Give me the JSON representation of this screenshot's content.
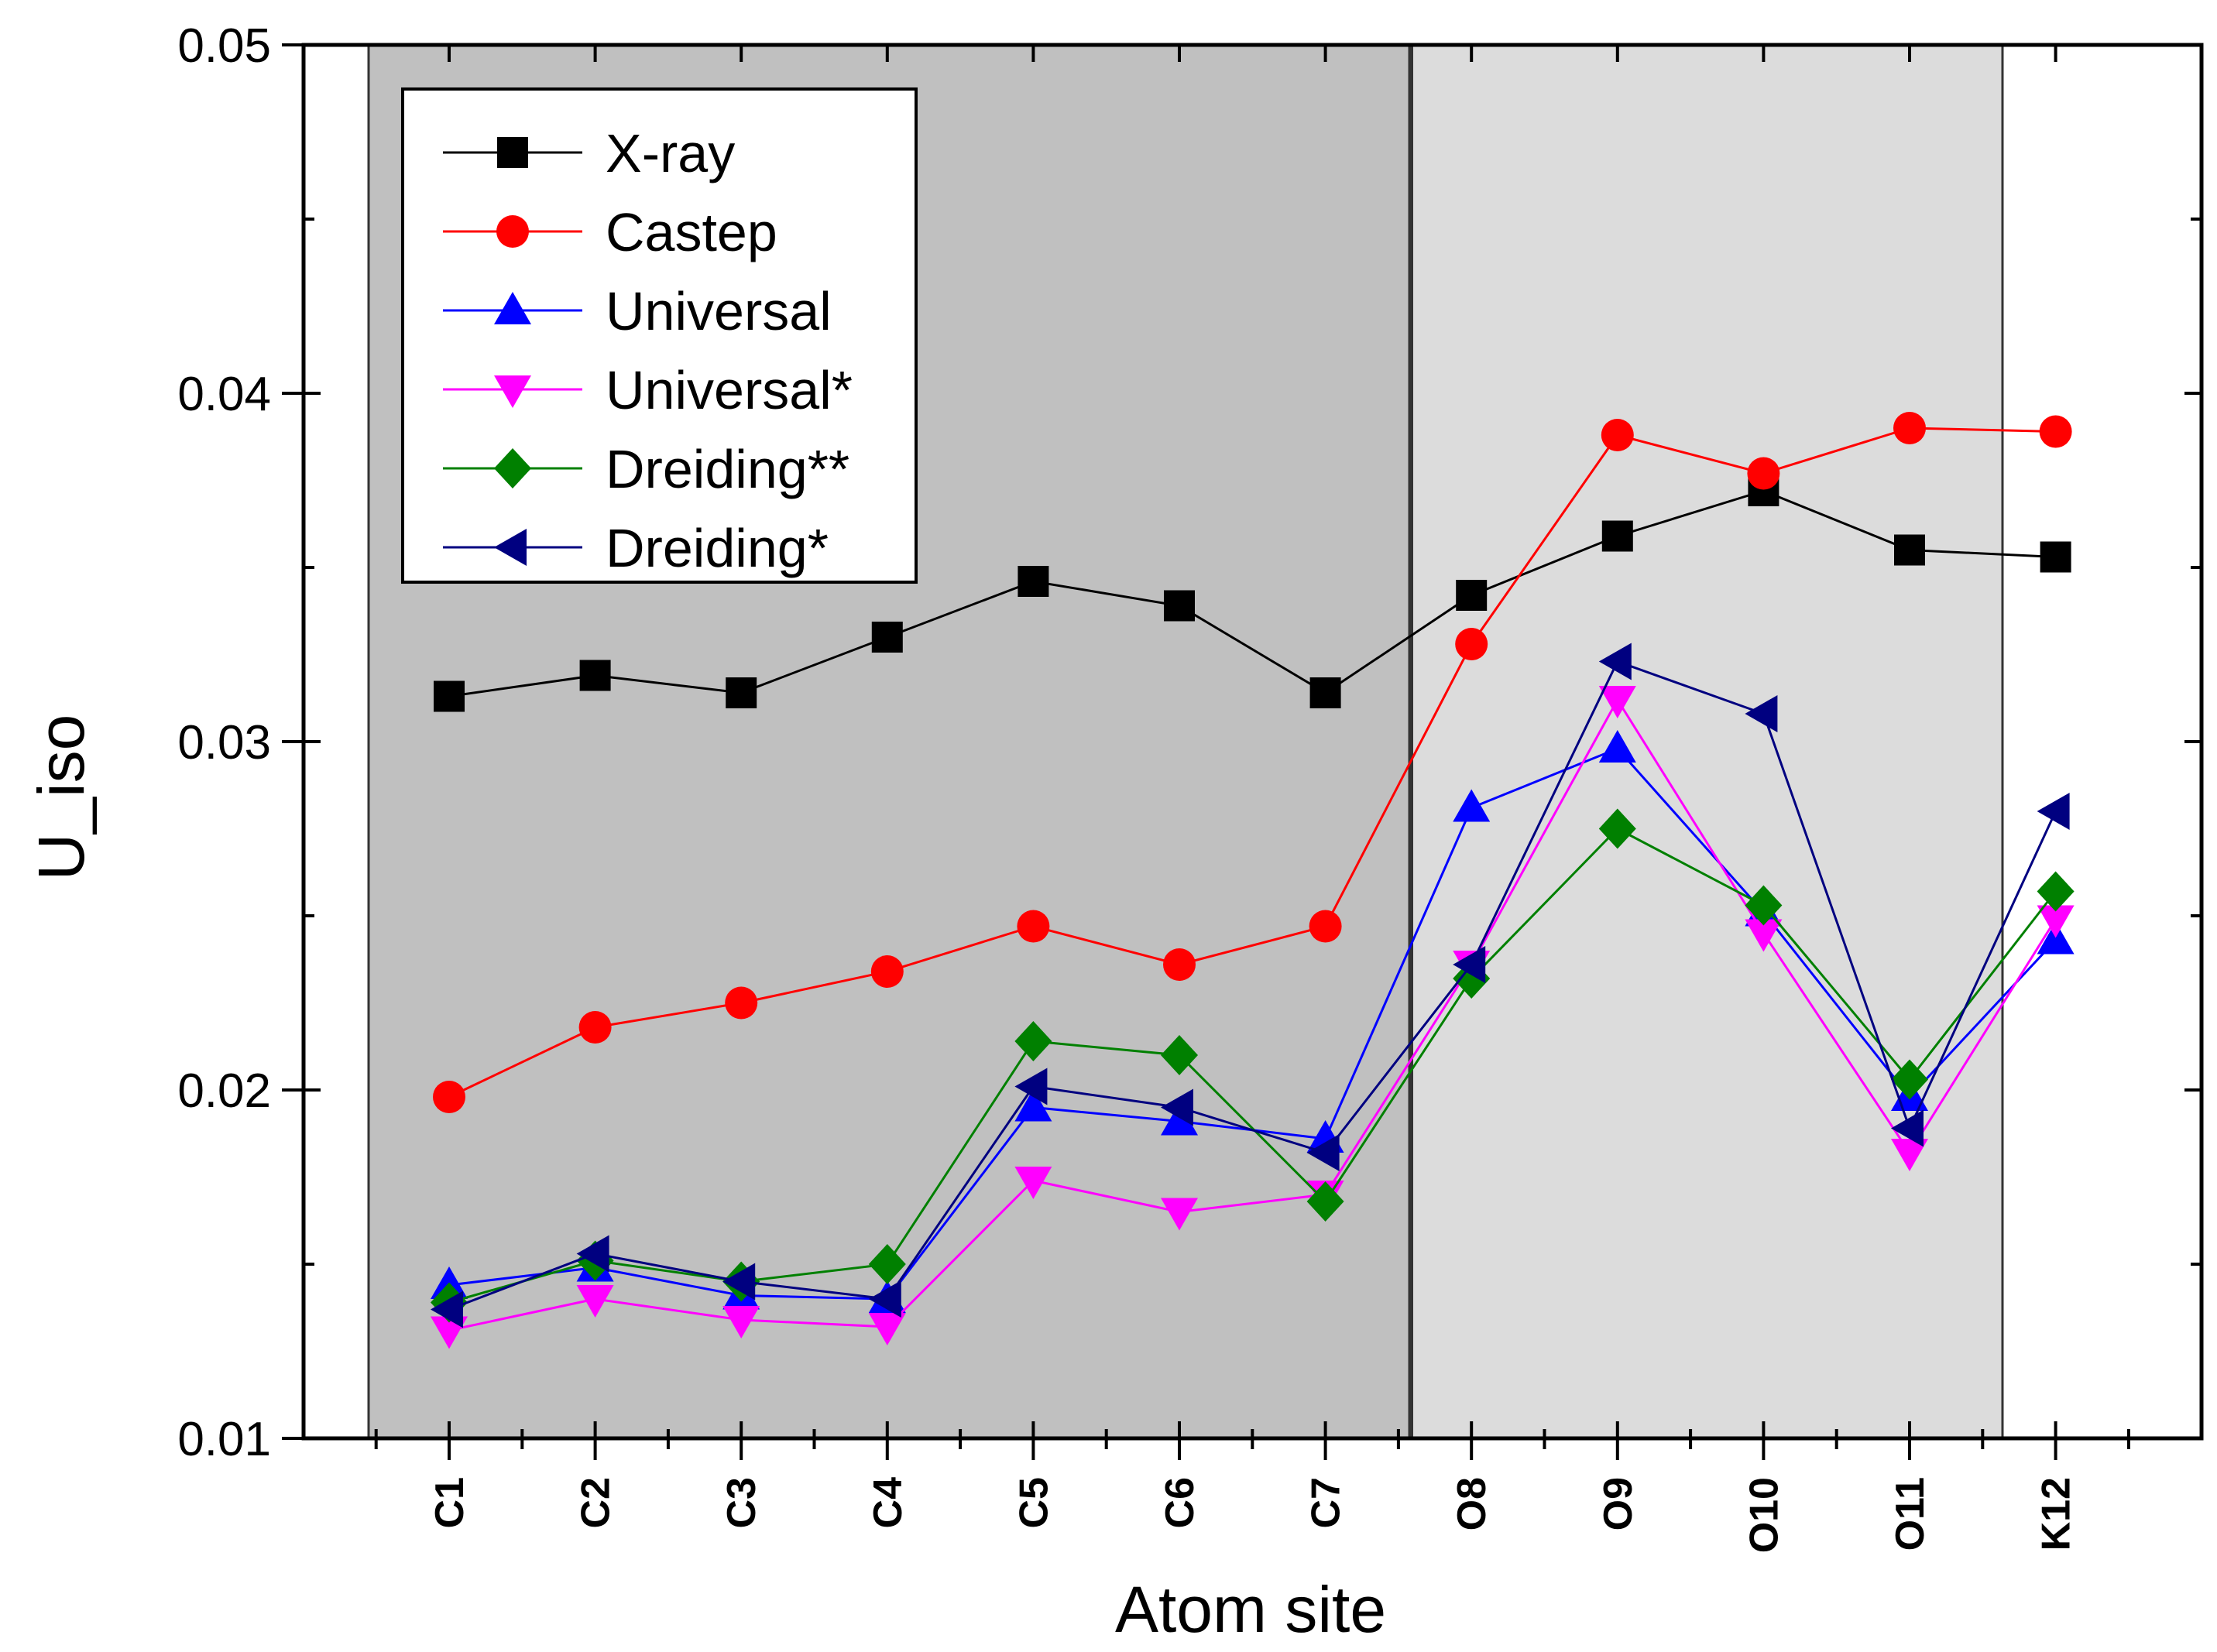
{
  "chart_data": {
    "type": "line",
    "title": "",
    "xlabel": "Atom site",
    "ylabel": "U_iso",
    "ylim": [
      0.01,
      0.05
    ],
    "yticks": [
      "0.01",
      "0.02",
      "0.03",
      "0.04",
      "0.05"
    ],
    "grid": false,
    "legend_position": "top-left",
    "categories": [
      "C1",
      "C2",
      "C3",
      "C4",
      "C5",
      "C6",
      "C7",
      "O8",
      "O9",
      "O10",
      "O11",
      "K12"
    ],
    "shaded_regions": [
      {
        "from_category": "C1",
        "to_category": "C7",
        "color": "#c0c0c0"
      },
      {
        "from_category": "O8",
        "to_category": "O11",
        "color": "#dcdcdc"
      }
    ],
    "series": [
      {
        "name": "X-ray",
        "color": "#000000",
        "marker": "square",
        "values": [
          0.0313,
          0.0319,
          0.0314,
          0.033,
          0.0346,
          0.0339,
          0.0314,
          0.0342,
          0.0359,
          0.0372,
          0.0355,
          0.0353
        ]
      },
      {
        "name": "Castep",
        "color": "#ff0000",
        "marker": "circle",
        "values": [
          0.0198,
          0.0218,
          0.0225,
          0.0234,
          0.0247,
          0.0236,
          0.0247,
          0.0328,
          0.0388,
          0.0377,
          0.039,
          0.0389
        ]
      },
      {
        "name": "Universal",
        "color": "#0000ff",
        "marker": "triangle-up",
        "values": [
          0.0144,
          0.0149,
          0.0141,
          0.014,
          0.0195,
          0.0191,
          0.0186,
          0.0281,
          0.0298,
          0.0251,
          0.0198,
          0.0243
        ]
      },
      {
        "name": "Universal*",
        "color": "#ff00ff",
        "marker": "triangle-down",
        "values": [
          0.0131,
          0.014,
          0.0134,
          0.0132,
          0.0174,
          0.0165,
          0.017,
          0.0236,
          0.0312,
          0.0245,
          0.0182,
          0.0249
        ]
      },
      {
        "name": "Dreiding**",
        "color": "#008000",
        "marker": "diamond",
        "values": [
          0.0139,
          0.0151,
          0.0145,
          0.015,
          0.0214,
          0.021,
          0.0168,
          0.0232,
          0.0275,
          0.0253,
          0.0203,
          0.0257
        ]
      },
      {
        "name": "Dreiding*",
        "color": "#000080",
        "marker": "triangle-left",
        "values": [
          0.0137,
          0.0153,
          0.0145,
          0.014,
          0.0201,
          0.0195,
          0.0182,
          0.0236,
          0.0323,
          0.0308,
          0.0189,
          0.028
        ]
      }
    ]
  }
}
